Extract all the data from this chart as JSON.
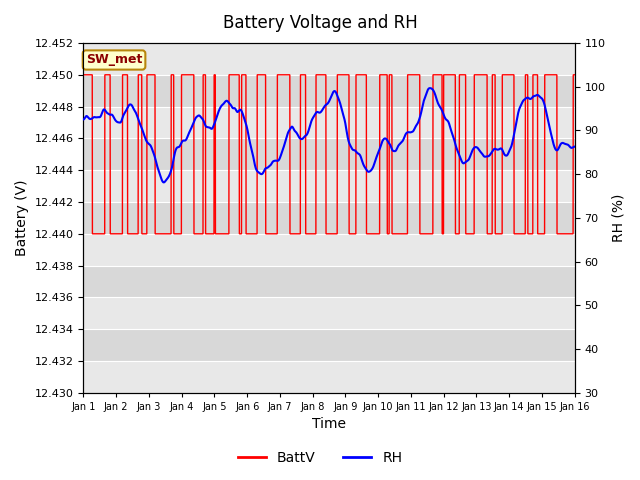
{
  "title": "Battery Voltage and RH",
  "xlabel": "Time",
  "ylabel_left": "Battery (V)",
  "ylabel_right": "RH (%)",
  "annotation": "SW_met",
  "ylim_left": [
    12.43,
    12.452
  ],
  "ylim_right": [
    30,
    110
  ],
  "yticks_left": [
    12.43,
    12.432,
    12.434,
    12.436,
    12.438,
    12.44,
    12.442,
    12.444,
    12.446,
    12.448,
    12.45,
    12.452
  ],
  "yticks_right": [
    30,
    40,
    50,
    60,
    70,
    80,
    90,
    100,
    110
  ],
  "background_color": "#ffffff",
  "plot_bg_color": "#d8d8d8",
  "stripe_light": "#e8e8e8",
  "grid_color": "#ffffff",
  "batt_color": "#ff0000",
  "rh_color": "#0000ff",
  "batt_linewidth": 1.0,
  "rh_linewidth": 1.5,
  "legend_batt": "BattV",
  "legend_rh": "RH",
  "title_fontsize": 12,
  "axis_fontsize": 10,
  "tick_fontsize": 8
}
